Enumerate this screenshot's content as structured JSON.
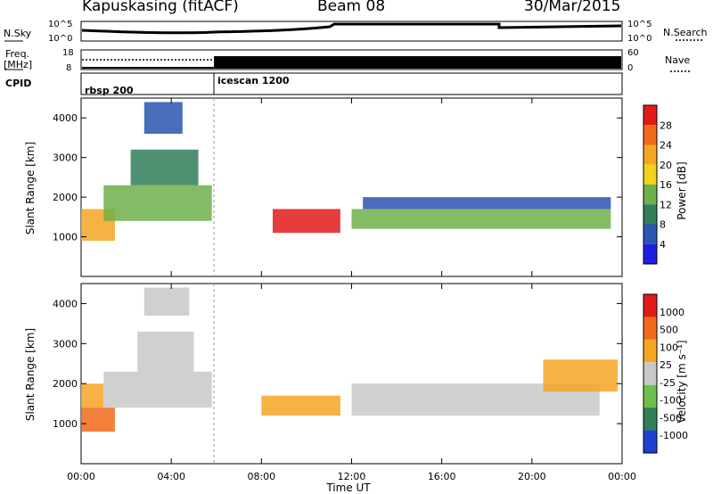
{
  "header": {
    "station": "Kapuskasing (fitACF)",
    "beam": "Beam 08",
    "date": "30/Mar/2015"
  },
  "panels": {
    "nsky": {
      "label": "N.Sky",
      "left_ticks": [
        "10^5",
        "10^0"
      ],
      "right_ticks": [
        "10^5",
        "10^0"
      ],
      "right_label": "N.Search"
    },
    "freq": {
      "label_line1": "Freq.",
      "label_line2": "[MHz]",
      "left_ticks": [
        "18",
        "8"
      ],
      "right_ticks": [
        "60",
        "0"
      ],
      "right_label": "Nave"
    },
    "cpid": {
      "label": "CPID",
      "programs": [
        "rbsp 200",
        "icescan 1200"
      ]
    }
  },
  "colors": {
    "power_scale": [
      "#1f1fe0",
      "#2a55b0",
      "#2f7f5a",
      "#6fb04a",
      "#f2d21a",
      "#f5a623",
      "#f06a1a",
      "#e21a1a"
    ],
    "velocity_scale": [
      "#1f3fd0",
      "#2f7f5a",
      "#6fc04a",
      "#c8c8c8",
      "#f5a623",
      "#f06a1a",
      "#e21a1a"
    ]
  },
  "chart_data": [
    {
      "type": "heatmap",
      "name": "power",
      "xlabel": "",
      "ylabel": "Slant Range [km]",
      "ylim": [
        0,
        4500
      ],
      "yticks": [
        "1000",
        "2000",
        "3000",
        "4000"
      ],
      "colorbar": {
        "label": "Power [dB]",
        "ticks": [
          "28",
          "24",
          "20",
          "16",
          "12",
          "8",
          "4"
        ]
      },
      "bands": [
        {
          "t0": 0.0,
          "t1": 1.5,
          "r0": 900,
          "r1": 1700,
          "level": 5
        },
        {
          "t0": 1.0,
          "t1": 5.8,
          "r0": 1400,
          "r1": 2300,
          "level": 3
        },
        {
          "t0": 2.2,
          "t1": 5.2,
          "r0": 2300,
          "r1": 3200,
          "level": 2
        },
        {
          "t0": 2.8,
          "t1": 4.5,
          "r0": 3600,
          "r1": 4400,
          "level": 1
        },
        {
          "t0": 8.5,
          "t1": 11.5,
          "r0": 1100,
          "r1": 1700,
          "level": 7
        },
        {
          "t0": 12.0,
          "t1": 23.5,
          "r0": 1200,
          "r1": 1700,
          "level": 3
        },
        {
          "t0": 12.5,
          "t1": 23.5,
          "r0": 1700,
          "r1": 2000,
          "level": 1
        }
      ]
    },
    {
      "type": "heatmap",
      "name": "velocity",
      "xlabel": "Time UT",
      "ylabel": "Slant Range [km]",
      "ylim": [
        0,
        4500
      ],
      "yticks": [
        "1000",
        "2000",
        "3000",
        "4000"
      ],
      "xticks": [
        "00:00",
        "04:00",
        "08:00",
        "12:00",
        "16:00",
        "20:00",
        "00:00"
      ],
      "colorbar": {
        "label": "Velocity [m s⁻¹]",
        "ticks": [
          "1000",
          "500",
          "100",
          "25",
          "-25",
          "-100",
          "-500",
          "-1000"
        ]
      },
      "bands": [
        {
          "t0": 0.0,
          "t1": 1.5,
          "r0": 800,
          "r1": 1400,
          "level": 5
        },
        {
          "t0": 0.0,
          "t1": 1.0,
          "r0": 1400,
          "r1": 2000,
          "level": 4
        },
        {
          "t0": 1.0,
          "t1": 5.8,
          "r0": 1400,
          "r1": 2300,
          "level": 3
        },
        {
          "t0": 2.5,
          "t1": 5.0,
          "r0": 2300,
          "r1": 3300,
          "level": 3
        },
        {
          "t0": 2.8,
          "t1": 4.8,
          "r0": 3700,
          "r1": 4400,
          "level": 3
        },
        {
          "t0": 8.0,
          "t1": 11.5,
          "r0": 1200,
          "r1": 1700,
          "level": 4
        },
        {
          "t0": 12.0,
          "t1": 23.0,
          "r0": 1200,
          "r1": 2000,
          "level": 3
        },
        {
          "t0": 20.5,
          "t1": 23.8,
          "r0": 1800,
          "r1": 2600,
          "level": 4
        }
      ]
    }
  ]
}
